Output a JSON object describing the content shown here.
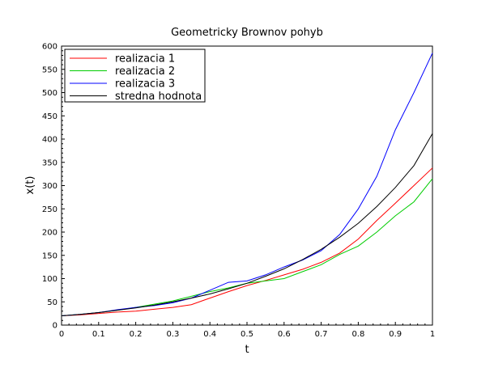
{
  "chart_data": {
    "type": "line",
    "title": "Geometricky Brownov pohyb",
    "xlabel": "t",
    "ylabel": "x(t)",
    "xlim": [
      0,
      1
    ],
    "ylim": [
      0,
      600
    ],
    "xticks": [
      "0",
      "0.1",
      "0.2",
      "0.3",
      "0.4",
      "0.5",
      "0.6",
      "0.7",
      "0.8",
      "0.9",
      "1"
    ],
    "yticks": [
      "0",
      "50",
      "100",
      "150",
      "200",
      "250",
      "300",
      "350",
      "400",
      "450",
      "500",
      "550",
      "600"
    ],
    "grid": false,
    "legend_position": "top-left",
    "series": [
      {
        "name": "realizacia 1",
        "color": "#ff0000",
        "x": [
          0,
          0.05,
          0.1,
          0.15,
          0.2,
          0.25,
          0.3,
          0.35,
          0.4,
          0.45,
          0.5,
          0.55,
          0.6,
          0.65,
          0.7,
          0.75,
          0.8,
          0.85,
          0.9,
          0.95,
          1.0
        ],
        "y": [
          20,
          22,
          25,
          28,
          30,
          34,
          38,
          44,
          58,
          72,
          85,
          96,
          108,
          120,
          135,
          155,
          185,
          225,
          262,
          300,
          338
        ]
      },
      {
        "name": "realizacia 2",
        "color": "#00cc00",
        "x": [
          0,
          0.05,
          0.1,
          0.15,
          0.2,
          0.25,
          0.3,
          0.35,
          0.4,
          0.45,
          0.5,
          0.55,
          0.6,
          0.65,
          0.7,
          0.75,
          0.8,
          0.85,
          0.9,
          0.95,
          1.0
        ],
        "y": [
          20,
          23,
          27,
          32,
          38,
          45,
          52,
          62,
          72,
          80,
          90,
          95,
          100,
          115,
          130,
          152,
          170,
          200,
          235,
          265,
          315
        ]
      },
      {
        "name": "realizacia 3",
        "color": "#0000ff",
        "x": [
          0,
          0.05,
          0.1,
          0.15,
          0.2,
          0.25,
          0.3,
          0.35,
          0.4,
          0.45,
          0.5,
          0.55,
          0.6,
          0.65,
          0.7,
          0.75,
          0.8,
          0.85,
          0.9,
          0.95,
          1.0
        ],
        "y": [
          20,
          23,
          27,
          33,
          38,
          42,
          48,
          58,
          75,
          92,
          95,
          108,
          125,
          140,
          160,
          195,
          250,
          320,
          420,
          500,
          585
        ]
      },
      {
        "name": "stredna hodnota",
        "color": "#000000",
        "x": [
          0,
          0.05,
          0.1,
          0.15,
          0.2,
          0.25,
          0.3,
          0.35,
          0.4,
          0.45,
          0.5,
          0.55,
          0.6,
          0.65,
          0.7,
          0.75,
          0.8,
          0.85,
          0.9,
          0.95,
          1.0
        ],
        "y": [
          20,
          23,
          27,
          32,
          37,
          43,
          50,
          58,
          67,
          78,
          90,
          105,
          121,
          141,
          163,
          189,
          219,
          255,
          296,
          343,
          412
        ]
      }
    ]
  }
}
